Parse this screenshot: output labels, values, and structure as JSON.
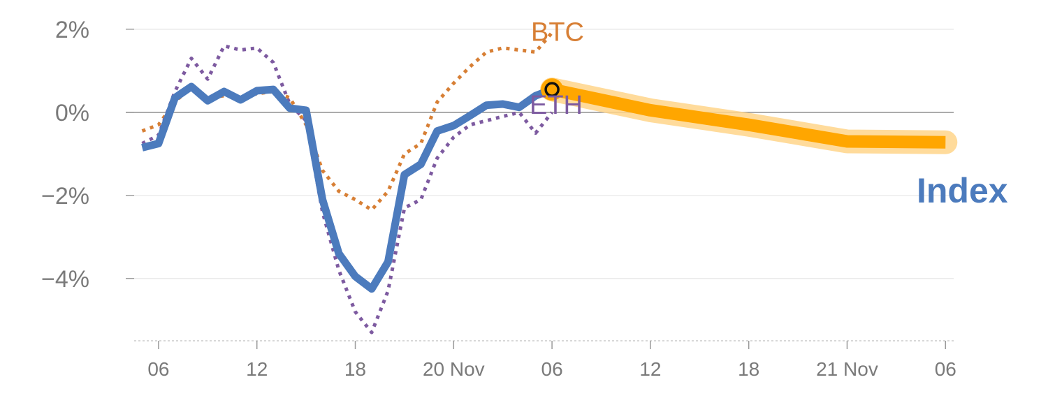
{
  "colors": {
    "index": "#4c7bbd",
    "btc": "#d77f35",
    "eth": "#7d5aa0",
    "forecast": "#ffa600",
    "forecast_band": "#ffd58a",
    "grid": "#e6e6e6",
    "zero_line": "#8c8c8c",
    "tick_text": "#7a7a7a"
  },
  "chart_data": {
    "type": "line",
    "y_axis": {
      "range": [
        -5.5,
        2.2
      ],
      "ticks": [
        {
          "value": 2,
          "label": "2%"
        },
        {
          "value": 0,
          "label": "0%"
        },
        {
          "value": -2,
          "label": "−2%"
        },
        {
          "value": -4,
          "label": "−4%"
        }
      ],
      "grid": true,
      "zero_line": true
    },
    "x_axis": {
      "range": [
        4,
        54.5
      ],
      "ticks": [
        {
          "value": 6,
          "label": "06"
        },
        {
          "value": 12,
          "label": "12"
        },
        {
          "value": 18,
          "label": "18"
        },
        {
          "value": 24,
          "label": "20 Nov"
        },
        {
          "value": 30,
          "label": "06"
        },
        {
          "value": 36,
          "label": "12"
        },
        {
          "value": 42,
          "label": "18"
        },
        {
          "value": 48,
          "label": "21 Nov"
        },
        {
          "value": 54,
          "label": "06"
        }
      ],
      "baseline_style": "dotted"
    },
    "series": [
      {
        "name": "Index",
        "style": "solid",
        "x": [
          5,
          6,
          7,
          8,
          9,
          10,
          11,
          12,
          13,
          14,
          15,
          16,
          17,
          18,
          19,
          20,
          21,
          22,
          23,
          24,
          25,
          26,
          27,
          28,
          29,
          30
        ],
        "y": [
          -0.85,
          -0.75,
          0.35,
          0.62,
          0.28,
          0.5,
          0.3,
          0.52,
          0.55,
          0.1,
          0.05,
          -2.1,
          -3.4,
          -3.95,
          -4.25,
          -3.6,
          -1.5,
          -1.25,
          -0.45,
          -0.32,
          -0.08,
          0.17,
          0.2,
          0.12,
          0.4,
          0.55
        ]
      },
      {
        "name": "BTC",
        "style": "dotted",
        "x": [
          5,
          6,
          7,
          8,
          9,
          10,
          11,
          12,
          13,
          14,
          15,
          16,
          17,
          18,
          19,
          20,
          21,
          22,
          23,
          24,
          25,
          26,
          27,
          28,
          29,
          30
        ],
        "y": [
          -0.45,
          -0.3,
          0.25,
          0.62,
          0.35,
          0.4,
          0.35,
          0.45,
          0.5,
          0.35,
          -0.3,
          -1.4,
          -1.9,
          -2.1,
          -2.35,
          -1.9,
          -1.0,
          -0.75,
          0.25,
          0.7,
          1.1,
          1.45,
          1.55,
          1.5,
          1.45,
          1.92
        ]
      },
      {
        "name": "ETH",
        "style": "dotted",
        "x": [
          5,
          6,
          7,
          8,
          9,
          10,
          11,
          12,
          13,
          14,
          15,
          16,
          17,
          18,
          19,
          20,
          21,
          22,
          23,
          24,
          25,
          26,
          27,
          28,
          29,
          30
        ],
        "y": [
          -0.75,
          -0.55,
          0.5,
          1.3,
          0.8,
          1.6,
          1.5,
          1.55,
          1.2,
          0.2,
          -0.2,
          -2.4,
          -3.8,
          -4.8,
          -5.3,
          -4.3,
          -2.3,
          -2.1,
          -1.1,
          -0.6,
          -0.3,
          -0.2,
          -0.1,
          0.0,
          -0.5,
          0.0
        ]
      },
      {
        "name": "Index",
        "role": "forecast",
        "style": "band",
        "x": [
          30,
          36,
          42,
          48,
          54
        ],
        "y": [
          0.55,
          0.05,
          -0.3,
          -0.7,
          -0.72
        ]
      }
    ],
    "current_marker": {
      "x": 30,
      "y": 0.55
    }
  }
}
